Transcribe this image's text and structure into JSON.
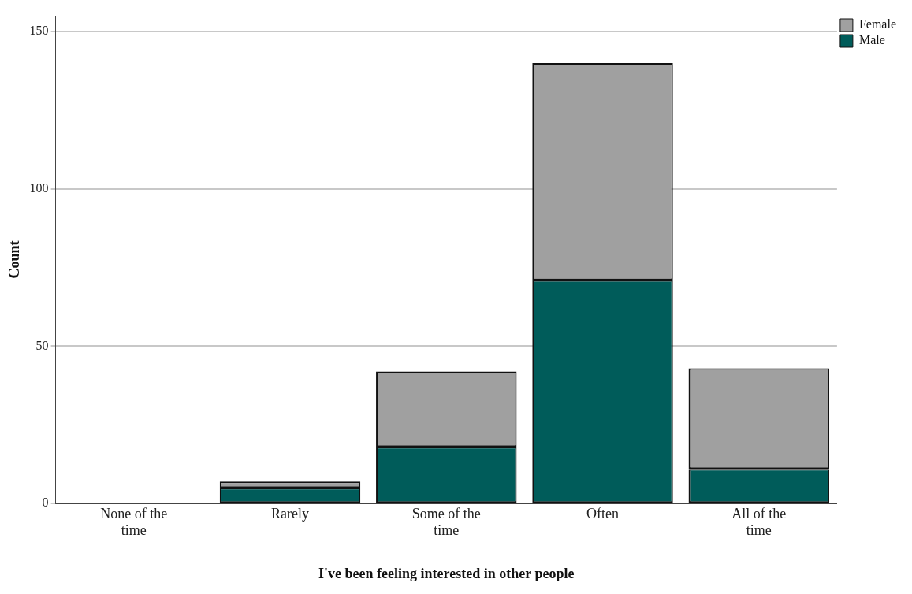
{
  "chart_data": {
    "type": "bar",
    "xlabel": "I've been feeling interested in other people",
    "ylabel": "Count",
    "categories": [
      "None of the time",
      "Rarely",
      "Some of the time",
      "Often",
      "All of the time"
    ],
    "stacked": true,
    "series": [
      {
        "name": "Male",
        "color": "#005c5a",
        "values": [
          0,
          5,
          18,
          71,
          11
        ]
      },
      {
        "name": "Female",
        "color": "#a0a0a0",
        "values": [
          0,
          2,
          24,
          69,
          32
        ]
      }
    ],
    "ylim": [
      0,
      155
    ],
    "yticks": [
      0,
      50,
      100,
      150
    ],
    "grid": "y",
    "legend": "top right"
  }
}
